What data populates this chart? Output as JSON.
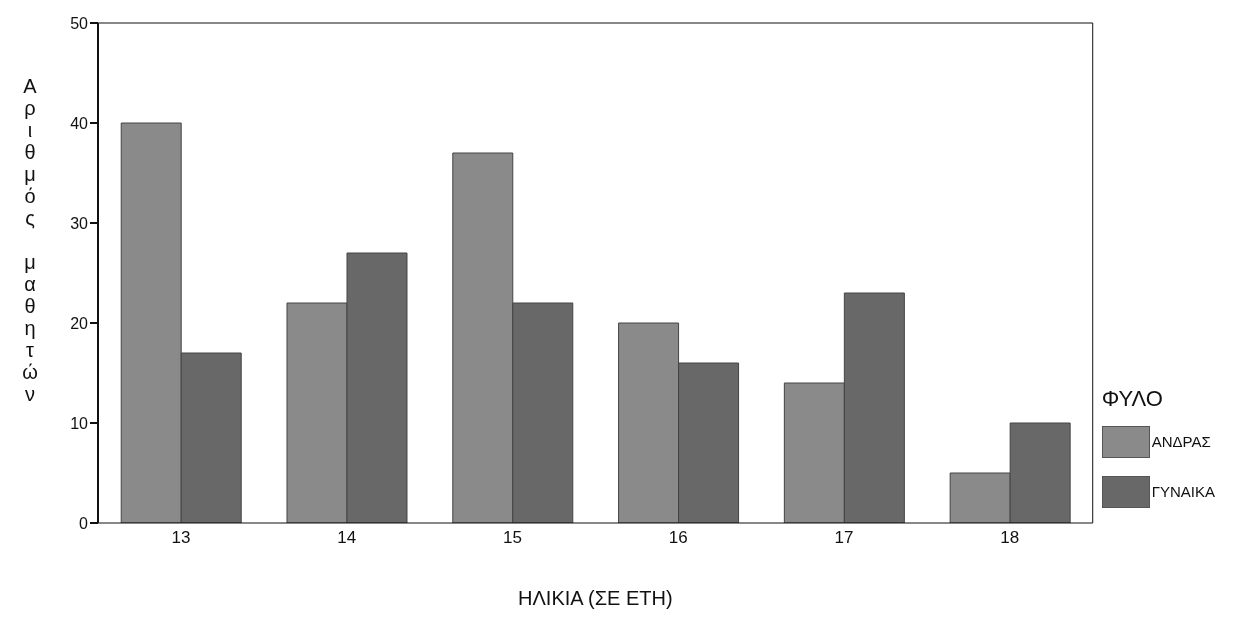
{
  "chart_data": {
    "type": "bar",
    "xlabel": "ΗΛΙΚΙΑ (ΣΕ ΕΤΗ)",
    "ylabel": "Αριθμός μαθητών",
    "legend_title": "ΦΥΛΟ",
    "categories": [
      "13",
      "14",
      "15",
      "16",
      "17",
      "18"
    ],
    "series": [
      {
        "name": "ΑΝΔΡΑΣ",
        "color": "#8a8a8a",
        "values": [
          40,
          22,
          37,
          20,
          14,
          5
        ]
      },
      {
        "name": "ΓΥΝΑΙΚΑ",
        "color": "#686868",
        "values": [
          17,
          27,
          22,
          16,
          23,
          10
        ]
      }
    ],
    "ylim": [
      0,
      50
    ],
    "yticks": [
      0,
      10,
      20,
      30,
      40,
      50
    ],
    "grid": false,
    "legend": "right"
  }
}
